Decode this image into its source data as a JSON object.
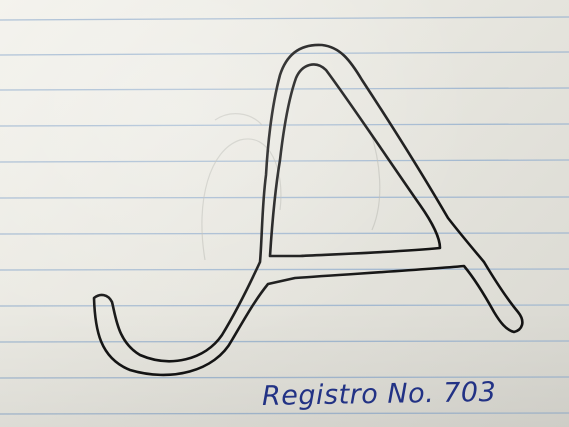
{
  "photo": {
    "subject": "hand-drawn outlined letter A on ruled notebook paper",
    "caption_text": "Registro No. 703"
  },
  "colors": {
    "paper": "#f1f0ea",
    "rule_line": "#9ab3cf",
    "ink_black": "#111111",
    "ink_blue": "#23348a"
  },
  "icons": [
    "letter-a-drawing"
  ]
}
